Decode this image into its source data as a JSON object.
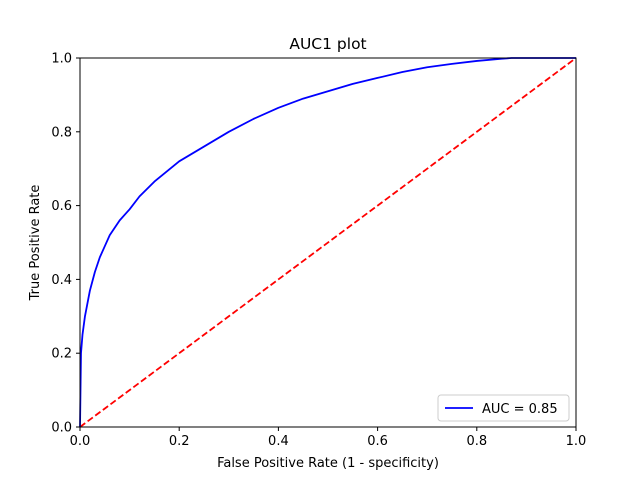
{
  "chart_data": {
    "type": "line",
    "title": "AUC1 plot",
    "xlabel": "False Positive Rate (1 - specificity)",
    "ylabel": "True Positive Rate",
    "xlim": [
      0,
      1
    ],
    "ylim": [
      0,
      1
    ],
    "xticks": [
      "0.0",
      "0.2",
      "0.4",
      "0.6",
      "0.8",
      "1.0"
    ],
    "yticks": [
      "0.0",
      "0.2",
      "0.4",
      "0.6",
      "0.8",
      "1.0"
    ],
    "grid": false,
    "legend_position": "lower-right",
    "series": [
      {
        "name": "AUC = 0.85",
        "color": "#0000ff",
        "style": "solid",
        "x": [
          0.0,
          0.002,
          0.005,
          0.01,
          0.02,
          0.03,
          0.04,
          0.05,
          0.06,
          0.08,
          0.1,
          0.12,
          0.15,
          0.2,
          0.25,
          0.3,
          0.35,
          0.4,
          0.45,
          0.5,
          0.55,
          0.6,
          0.65,
          0.7,
          0.75,
          0.8,
          0.85,
          0.87,
          0.9,
          0.95,
          1.0
        ],
        "y": [
          0.0,
          0.2,
          0.25,
          0.3,
          0.37,
          0.42,
          0.46,
          0.49,
          0.52,
          0.56,
          0.59,
          0.625,
          0.665,
          0.72,
          0.76,
          0.8,
          0.835,
          0.865,
          0.89,
          0.91,
          0.93,
          0.946,
          0.962,
          0.975,
          0.984,
          0.992,
          0.998,
          1.0,
          1.0,
          1.0,
          1.0
        ]
      },
      {
        "name": "",
        "color": "#ff0000",
        "style": "dashed",
        "x": [
          0,
          1
        ],
        "y": [
          0,
          1
        ]
      }
    ]
  }
}
